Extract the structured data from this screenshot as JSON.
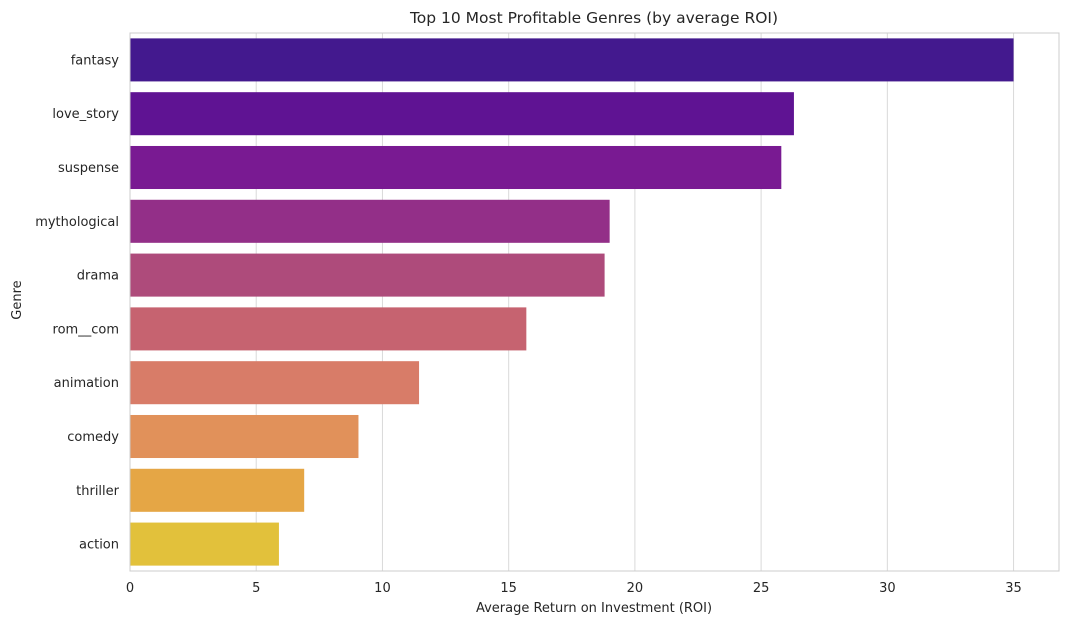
{
  "chart_data": {
    "type": "bar",
    "orientation": "horizontal",
    "title": "Top 10 Most Profitable Genres (by average ROI)",
    "xlabel": "Average Return on Investment (ROI)",
    "ylabel": "Genre",
    "categories": [
      "fantasy",
      "love_story",
      "suspense",
      "mythological",
      "drama",
      "rom__com",
      "animation",
      "comedy",
      "thriller",
      "action"
    ],
    "values": [
      35.0,
      26.3,
      25.8,
      19.0,
      18.8,
      15.7,
      11.45,
      9.05,
      6.9,
      5.9
    ],
    "colors": [
      "#43198e",
      "#5f1393",
      "#791a92",
      "#932f88",
      "#ae4b7b",
      "#c66370",
      "#d87c68",
      "#e1915a",
      "#e5a645",
      "#e2c13b"
    ],
    "xlim": [
      0,
      36.8
    ],
    "xticks": [
      0,
      5,
      10,
      15,
      20,
      25,
      30,
      35
    ],
    "grid": true,
    "legend": "none"
  }
}
